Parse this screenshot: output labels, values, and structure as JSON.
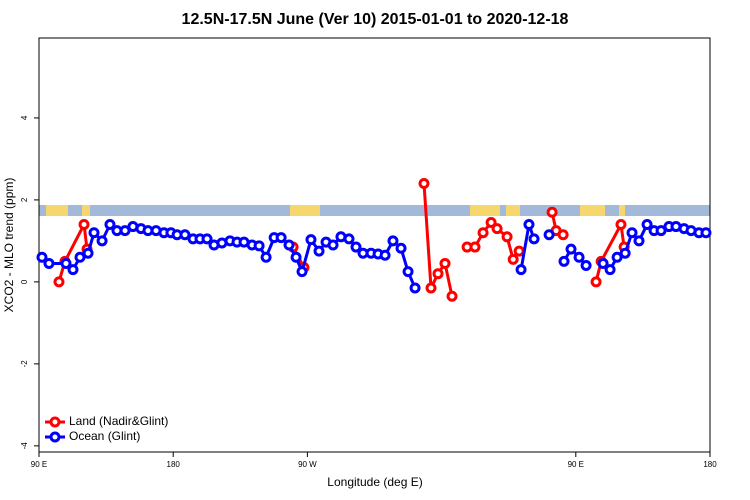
{
  "chart_data": {
    "type": "line",
    "title": "12.5N-17.5N June (Ver 10)   2015-01-01 to 2020-12-18",
    "x_label": "Longitude (deg E)",
    "y_label": "XCO2 - MLO trend (ppm)",
    "xlim": [
      90,
      540
    ],
    "ylim": [
      -4.15,
      5.95
    ],
    "xticks": [
      {
        "value": 90,
        "label": "90 E"
      },
      {
        "value": 180,
        "label": "180"
      },
      {
        "value": 270,
        "label": "90 W"
      },
      {
        "value": 450,
        "label": "90 E"
      },
      {
        "value": 540,
        "label": "180"
      }
    ],
    "yticks": [
      -4,
      -2,
      0,
      2,
      4
    ],
    "legend": "bottom-left",
    "series": [
      {
        "name": "Land (Nadir&Glint)",
        "color": "#ff0000",
        "x": [
          103.4,
          107.4,
          120.2,
          122.2,
          null,
          260.4,
          267.7,
          null,
          348.2,
          352.9,
          357.6,
          362.3,
          367.0,
          null,
          377.1,
          382.4,
          387.8,
          393.2,
          397.2,
          403.9,
          408.0,
          412.0,
          null,
          434.1,
          436.8,
          441.5,
          null,
          463.6,
          467.0,
          480.3,
          482.4
        ],
        "values": [
          0.0,
          0.5,
          1.4,
          0.8,
          null,
          0.85,
          0.35,
          null,
          2.4,
          -0.15,
          0.2,
          0.45,
          -0.35,
          null,
          0.85,
          0.85,
          1.2,
          1.45,
          1.3,
          1.1,
          0.55,
          0.75,
          null,
          1.7,
          1.25,
          1.15,
          null,
          0.0,
          0.5,
          1.4,
          0.85
        ]
      },
      {
        "name": "Ocean (Glint)",
        "color": "#0000ff",
        "x": [
          92.0,
          96.7,
          108.1,
          112.8,
          117.5,
          122.9,
          126.9,
          132.3,
          137.6,
          142.3,
          147.7,
          153.0,
          158.4,
          163.1,
          168.5,
          173.8,
          178.5,
          182.6,
          187.9,
          193.3,
          198.0,
          202.7,
          207.4,
          212.7,
          218.1,
          222.8,
          227.5,
          232.9,
          237.6,
          242.3,
          247.7,
          252.4,
          257.7,
          262.4,
          266.4,
          272.4,
          277.8,
          282.5,
          287.2,
          292.5,
          297.9,
          302.6,
          307.3,
          312.7,
          317.4,
          322.1,
          327.4,
          332.8,
          337.5,
          342.2,
          null,
          413.3,
          418.6,
          422.0,
          null,
          432.1,
          null,
          442.1,
          446.8,
          452.2,
          456.9,
          null,
          468.3,
          473.0,
          477.7,
          483.1,
          487.7,
          492.4,
          497.8,
          502.5,
          507.2,
          512.5,
          517.2,
          522.6,
          527.3,
          532.6,
          537.3
        ],
        "values": [
          0.6,
          0.45,
          0.45,
          0.3,
          0.6,
          0.7,
          1.2,
          1.0,
          1.4,
          1.25,
          1.25,
          1.35,
          1.3,
          1.25,
          1.25,
          1.2,
          1.2,
          1.15,
          1.15,
          1.05,
          1.05,
          1.05,
          0.9,
          0.95,
          1.0,
          0.97,
          0.97,
          0.9,
          0.88,
          0.6,
          1.08,
          1.08,
          0.9,
          0.6,
          0.25,
          1.03,
          0.75,
          0.97,
          0.9,
          1.1,
          1.05,
          0.85,
          0.7,
          0.7,
          0.68,
          0.65,
          1.0,
          0.82,
          0.25,
          -0.15,
          null,
          0.3,
          1.4,
          1.05,
          null,
          1.15,
          null,
          0.5,
          0.8,
          0.6,
          0.4,
          null,
          0.45,
          0.3,
          0.6,
          0.7,
          1.2,
          1.0,
          1.4,
          1.25,
          1.25,
          1.35,
          1.35,
          1.3,
          1.25,
          1.2,
          1.2
        ]
      }
    ]
  }
}
